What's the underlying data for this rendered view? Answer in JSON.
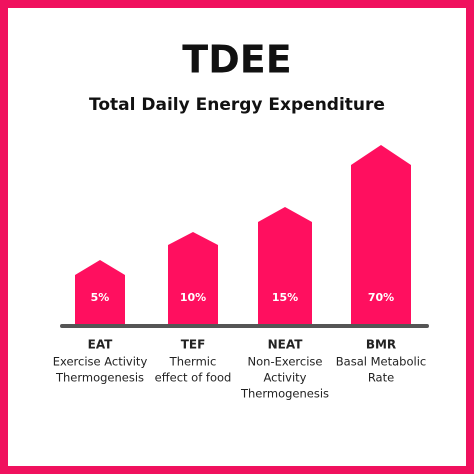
{
  "header": {
    "title": "TDEE",
    "subtitle": "Total Daily Energy Expenditure"
  },
  "items": [
    {
      "percent": "5%",
      "name": "EAT",
      "description": [
        "Exercise Activity",
        "Thermogenesis"
      ]
    },
    {
      "percent": "10%",
      "name": "TEF",
      "description": [
        "Thermic",
        "effect of food"
      ]
    },
    {
      "percent": "15%",
      "name": "NEAT",
      "description": [
        "Non-Exercise",
        "Activity",
        "Thermogenesis"
      ]
    },
    {
      "percent": "70%",
      "name": "BMR",
      "description": [
        "Basal Metabolic",
        "Rate"
      ]
    }
  ]
}
